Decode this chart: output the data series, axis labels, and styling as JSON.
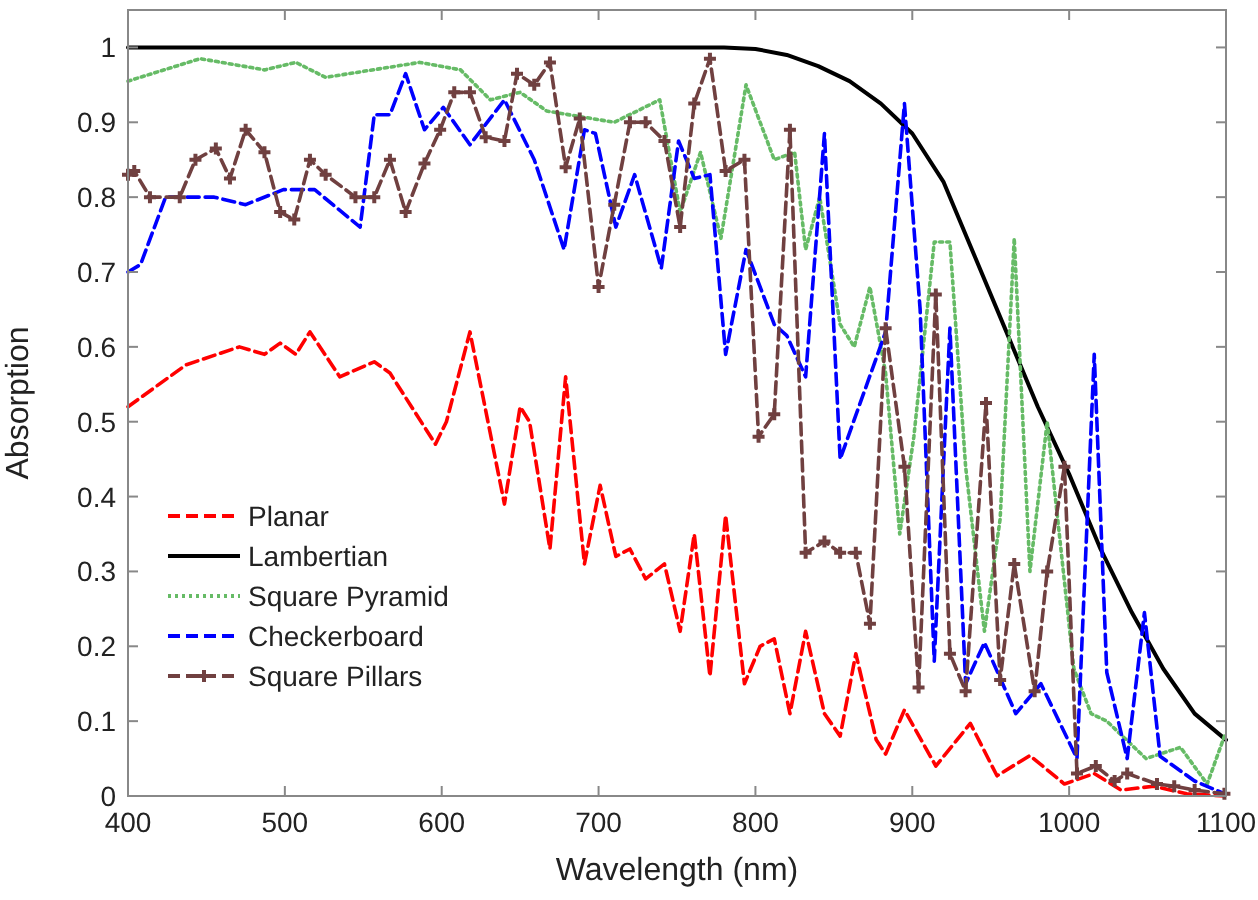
{
  "chart_data": {
    "type": "line",
    "xlabel": "Wavelength (nm)",
    "ylabel": "Absorption",
    "xlim": [
      400,
      1100
    ],
    "ylim": [
      0,
      1.05
    ],
    "xticks": [
      400,
      500,
      600,
      700,
      800,
      900,
      1000,
      1100
    ],
    "yticks": [
      0,
      0.1,
      0.2,
      0.3,
      0.4,
      0.5,
      0.6,
      0.7,
      0.8,
      0.9,
      1
    ],
    "legend": "bottom left",
    "grid": false,
    "series": [
      {
        "name": "Planar",
        "color": "#ff0000",
        "line_style": "dashed",
        "x": [
          400,
          437,
          471,
          487,
          497,
          507,
          516,
          535,
          557,
          567,
          596,
          603,
          618,
          640,
          650,
          656,
          669,
          679,
          691,
          701,
          711,
          720,
          730,
          742,
          752,
          761,
          771,
          781,
          793,
          803,
          812,
          822,
          832,
          844,
          854,
          864,
          877,
          883,
          895,
          915,
          937,
          954,
          975,
          997,
          1016,
          1033,
          1054,
          1075,
          1099
        ],
        "values": [
          0.52,
          0.576,
          0.6,
          0.59,
          0.605,
          0.59,
          0.62,
          0.56,
          0.58,
          0.565,
          0.47,
          0.5,
          0.62,
          0.39,
          0.52,
          0.5,
          0.33,
          0.56,
          0.31,
          0.415,
          0.32,
          0.33,
          0.29,
          0.31,
          0.22,
          0.35,
          0.16,
          0.375,
          0.15,
          0.2,
          0.21,
          0.11,
          0.22,
          0.11,
          0.08,
          0.19,
          0.075,
          0.056,
          0.115,
          0.04,
          0.097,
          0.027,
          0.054,
          0.016,
          0.03,
          0.008,
          0.013,
          0.003,
          0
        ]
      },
      {
        "name": "Lambertian",
        "color": "#000000",
        "line_style": "solid",
        "x": [
          400,
          780,
          800,
          820,
          840,
          860,
          880,
          900,
          920,
          940,
          960,
          980,
          1000,
          1020,
          1040,
          1060,
          1080,
          1100
        ],
        "values": [
          1,
          1,
          0.998,
          0.99,
          0.975,
          0.955,
          0.925,
          0.885,
          0.82,
          0.72,
          0.62,
          0.52,
          0.43,
          0.33,
          0.245,
          0.17,
          0.11,
          0.075
        ]
      },
      {
        "name": "Square Pyramid",
        "color": "#66bb66",
        "line_style": "dotted",
        "x": [
          400,
          446,
          487,
          507,
          526,
          586,
          612,
          631,
          650,
          667,
          710,
          739,
          752,
          765,
          778,
          794,
          812,
          825,
          832,
          841,
          854,
          863,
          873,
          883,
          892,
          901,
          914,
          924,
          934,
          946,
          956,
          965,
          975,
          986,
          1003,
          1014,
          1024,
          1049,
          1071,
          1088,
          1099
        ],
        "values": [
          0.955,
          0.985,
          0.97,
          0.98,
          0.96,
          0.98,
          0.97,
          0.93,
          0.94,
          0.915,
          0.9,
          0.93,
          0.78,
          0.86,
          0.745,
          0.95,
          0.85,
          0.86,
          0.73,
          0.8,
          0.63,
          0.6,
          0.68,
          0.565,
          0.35,
          0.48,
          0.74,
          0.74,
          0.44,
          0.22,
          0.37,
          0.745,
          0.3,
          0.5,
          0.17,
          0.11,
          0.1,
          0.05,
          0.065,
          0.016,
          0.08
        ]
      },
      {
        "name": "Checkerboard",
        "color": "#0000ff",
        "line_style": "dashed",
        "x": [
          400,
          408,
          424,
          455,
          475,
          499,
          519,
          548,
          557,
          567,
          577,
          589,
          601,
          618,
          640,
          659,
          678,
          691,
          698,
          711,
          723,
          740,
          751,
          761,
          771,
          781,
          794,
          812,
          820,
          832,
          844,
          854,
          883,
          895,
          905,
          914,
          924,
          934,
          946,
          966,
          982,
          1005,
          1016,
          1024,
          1037,
          1048,
          1058,
          1080,
          1099
        ],
        "values": [
          0.7,
          0.71,
          0.8,
          0.8,
          0.79,
          0.81,
          0.81,
          0.76,
          0.91,
          0.91,
          0.965,
          0.89,
          0.92,
          0.87,
          0.93,
          0.85,
          0.73,
          0.89,
          0.885,
          0.76,
          0.83,
          0.705,
          0.875,
          0.825,
          0.83,
          0.59,
          0.73,
          0.63,
          0.615,
          0.56,
          0.885,
          0.45,
          0.62,
          0.925,
          0.65,
          0.18,
          0.625,
          0.15,
          0.205,
          0.11,
          0.15,
          0.05,
          0.59,
          0.165,
          0.05,
          0.245,
          0.053,
          0.02,
          0.003
        ]
      },
      {
        "name": "Square Pillars",
        "color": "#704040",
        "line_style": "dashed",
        "marker": "cross",
        "x": [
          400,
          404,
          414,
          433,
          443,
          456,
          465,
          475,
          487,
          497,
          506,
          516,
          526,
          545,
          557,
          567,
          577,
          589,
          599,
          608,
          618,
          628,
          640,
          648,
          659,
          669,
          679,
          688,
          700,
          710,
          720,
          730,
          742,
          752,
          761,
          771,
          781,
          793,
          802,
          812,
          822,
          832,
          844,
          854,
          864,
          873,
          883,
          895,
          904,
          915,
          924,
          934,
          947,
          956,
          965,
          978,
          986,
          997,
          1005,
          1017,
          1029,
          1037,
          1056,
          1067,
          1080,
          1099
        ],
        "values": [
          0.83,
          0.835,
          0.8,
          0.8,
          0.85,
          0.865,
          0.825,
          0.89,
          0.86,
          0.78,
          0.77,
          0.85,
          0.83,
          0.8,
          0.8,
          0.85,
          0.78,
          0.845,
          0.89,
          0.94,
          0.94,
          0.88,
          0.875,
          0.965,
          0.95,
          0.98,
          0.84,
          0.905,
          0.68,
          0.79,
          0.9,
          0.9,
          0.875,
          0.76,
          0.925,
          0.985,
          0.835,
          0.85,
          0.48,
          0.51,
          0.89,
          0.325,
          0.34,
          0.325,
          0.325,
          0.23,
          0.625,
          0.44,
          0.145,
          0.67,
          0.19,
          0.14,
          0.525,
          0.155,
          0.31,
          0.14,
          0.3,
          0.44,
          0.03,
          0.04,
          0.02,
          0.03,
          0.016,
          0.013,
          0.008,
          0.003
        ]
      }
    ]
  }
}
